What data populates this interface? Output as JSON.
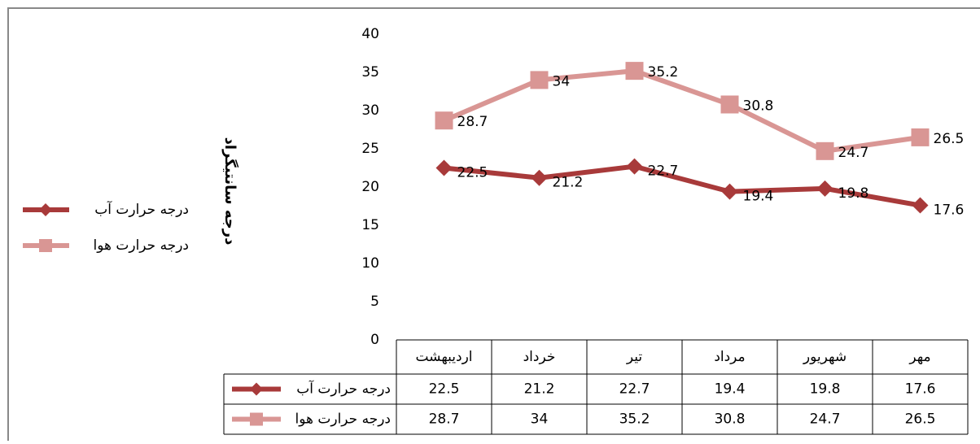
{
  "chart_data": {
    "type": "line",
    "y_label": "درجه سانتیگراد",
    "categories": [
      "اردیبهشت",
      "خرداد",
      "تیر",
      "مرداد",
      "شهریور",
      "مهر"
    ],
    "series": [
      {
        "name": "درجه حرارت آب",
        "color": "#a83a3a",
        "marker": "diamond",
        "values": [
          22.5,
          21.2,
          22.7,
          19.4,
          19.8,
          17.6
        ]
      },
      {
        "name": "درجه حرارت هوا",
        "color": "#d99694",
        "marker": "square",
        "values": [
          28.7,
          34,
          35.2,
          30.8,
          24.7,
          26.5
        ]
      }
    ],
    "ylim": [
      0,
      40
    ],
    "yticks": [
      0,
      5,
      10,
      15,
      20,
      25,
      30,
      35,
      40
    ],
    "grid": false,
    "legend": "left",
    "data_table": true
  }
}
